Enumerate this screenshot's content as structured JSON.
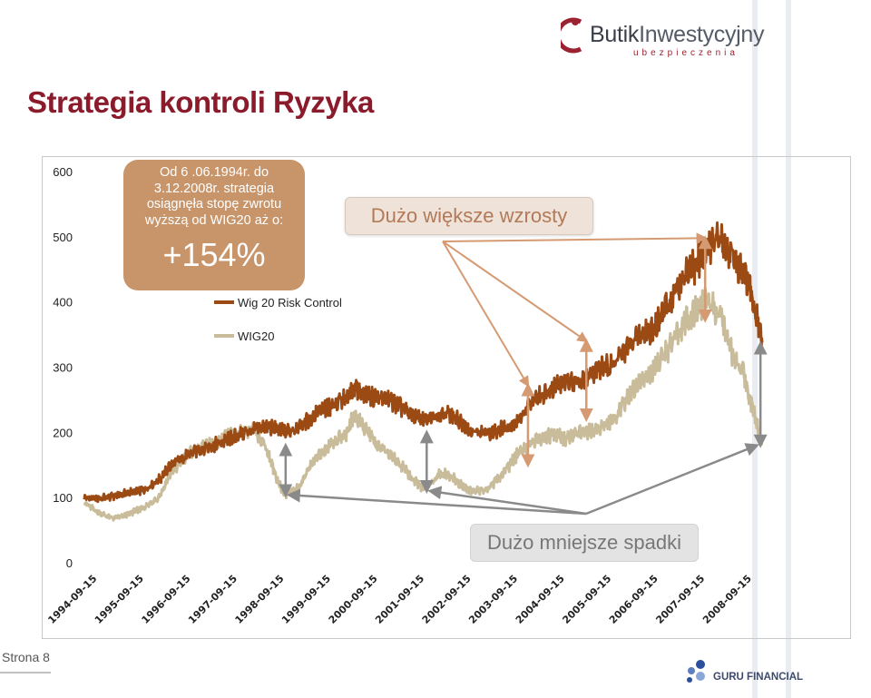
{
  "brand": {
    "main_part1": "Butik",
    "main_part2": "Inwestycyjny",
    "sub": "ubezpieczenia",
    "partner": "GURU FINANCIAL",
    "accent": "#8b1a2b"
  },
  "page_title": "Strategia kontroli Ryzyka",
  "callout": {
    "text": "Od 6 .06.1994r. do 3.12.2008r. strategia osiągnęła stopę zwrotu wyższą od WIG20 aż o:",
    "value": "+154%"
  },
  "annotations": {
    "wzrosty": "Dużo większe wzrosty",
    "spadki": "Dużo mniejsze spadki"
  },
  "footer": {
    "page": "Strona 8"
  },
  "chart_data": {
    "type": "line",
    "title": "",
    "xlabel": "",
    "ylabel": "",
    "ylim": [
      0,
      600
    ],
    "yticks": [
      0,
      100,
      200,
      300,
      400,
      500,
      600
    ],
    "xlim": [
      "1994-06-06",
      "2008-12-03"
    ],
    "xtick_labels": [
      "1994-09-15",
      "1995-09-15",
      "1996-09-15",
      "1997-09-15",
      "1998-09-15",
      "1999-09-15",
      "2000-09-15",
      "2001-09-15",
      "2002-09-15",
      "2003-09-15",
      "2004-09-15",
      "2005-09-15",
      "2006-09-15",
      "2007-09-15",
      "2008-09-15"
    ],
    "grid": false,
    "legend": "top-left, inside plot",
    "series": [
      {
        "name": "Wig 20 Risk Control",
        "color": "#9c4a14",
        "x": [
          "1994-06-06",
          "1994-09-15",
          "1995-01-15",
          "1995-04-15",
          "1995-07-15",
          "1995-09-15",
          "1996-01-15",
          "1996-04-15",
          "1996-07-15",
          "1996-09-15",
          "1997-01-15",
          "1997-04-15",
          "1997-07-15",
          "1997-09-15",
          "1998-01-15",
          "1998-04-15",
          "1998-07-15",
          "1998-09-15",
          "1999-01-15",
          "1999-04-15",
          "1999-07-15",
          "1999-09-15",
          "2000-01-15",
          "2000-03-15",
          "2000-06-15",
          "2000-09-15",
          "2000-12-15",
          "2001-03-15",
          "2001-06-15",
          "2001-09-15",
          "2002-01-15",
          "2002-04-15",
          "2002-07-15",
          "2002-09-15",
          "2003-01-15",
          "2003-04-15",
          "2003-07-15",
          "2003-09-15",
          "2004-01-15",
          "2004-04-15",
          "2004-07-15",
          "2004-09-15",
          "2005-01-15",
          "2005-04-15",
          "2005-07-15",
          "2005-09-15",
          "2006-01-15",
          "2006-04-15",
          "2006-07-15",
          "2006-09-15",
          "2007-01-15",
          "2007-04-15",
          "2007-07-15",
          "2007-09-15",
          "2008-01-15",
          "2008-04-15",
          "2008-07-15",
          "2008-09-15",
          "2008-12-03"
        ],
        "values": [
          100,
          98,
          102,
          106,
          110,
          112,
          128,
          150,
          160,
          168,
          178,
          182,
          190,
          196,
          204,
          208,
          206,
          200,
          210,
          222,
          236,
          240,
          252,
          268,
          258,
          252,
          250,
          238,
          226,
          218,
          230,
          228,
          210,
          200,
          198,
          204,
          210,
          216,
          250,
          262,
          274,
          276,
          278,
          292,
          300,
          302,
          330,
          348,
          356,
          370,
          412,
          440,
          460,
          480,
          496,
          470,
          440,
          410,
          338
        ]
      },
      {
        "name": "WIG20",
        "color": "#c9bc9a",
        "x": [
          "1994-06-06",
          "1994-09-15",
          "1995-01-15",
          "1995-04-15",
          "1995-07-15",
          "1995-09-15",
          "1996-01-15",
          "1996-04-15",
          "1996-07-15",
          "1996-09-15",
          "1997-01-15",
          "1997-04-15",
          "1997-07-15",
          "1997-09-15",
          "1998-01-15",
          "1998-04-15",
          "1998-07-15",
          "1998-09-15",
          "1999-01-15",
          "1999-04-15",
          "1999-07-15",
          "1999-09-15",
          "2000-01-15",
          "2000-03-15",
          "2000-06-15",
          "2000-09-15",
          "2000-12-15",
          "2001-03-15",
          "2001-06-15",
          "2001-09-15",
          "2002-01-15",
          "2002-04-15",
          "2002-07-15",
          "2002-09-15",
          "2003-01-15",
          "2003-04-15",
          "2003-07-15",
          "2003-09-15",
          "2004-01-15",
          "2004-04-15",
          "2004-07-15",
          "2004-09-15",
          "2005-01-15",
          "2005-04-15",
          "2005-07-15",
          "2005-09-15",
          "2006-01-15",
          "2006-04-15",
          "2006-07-15",
          "2006-09-15",
          "2007-01-15",
          "2007-04-15",
          "2007-07-15",
          "2007-09-15",
          "2008-01-15",
          "2008-04-15",
          "2008-07-15",
          "2008-09-15",
          "2008-12-03"
        ],
        "values": [
          92,
          78,
          68,
          72,
          80,
          86,
          100,
          140,
          158,
          170,
          180,
          184,
          196,
          198,
          206,
          182,
          130,
          104,
          118,
          152,
          170,
          182,
          200,
          226,
          204,
          178,
          168,
          150,
          128,
          112,
          138,
          132,
          116,
          110,
          112,
          130,
          150,
          168,
          186,
          194,
          196,
          190,
          200,
          204,
          212,
          218,
          250,
          280,
          292,
          306,
          340,
          372,
          390,
          400,
          380,
          320,
          290,
          240,
          180
        ]
      }
    ],
    "arrows": [
      {
        "group": "wzrosty",
        "from": [
          "2003-12-01",
          272
        ],
        "to": [
          "2003-12-01",
          150
        ]
      },
      {
        "group": "wzrosty",
        "from": [
          "2005-03-01",
          340
        ],
        "to": [
          "2005-03-01",
          220
        ]
      },
      {
        "group": "wzrosty",
        "from": [
          "2007-09-15",
          498
        ],
        "to": [
          "2007-09-15",
          372
        ]
      },
      {
        "group": "spadki",
        "from": [
          "1998-09-25",
          104
        ],
        "to": [
          "1998-09-25",
          180
        ]
      },
      {
        "group": "spadki",
        "from": [
          "2001-10-01",
          110
        ],
        "to": [
          "2001-10-01",
          200
        ]
      },
      {
        "group": "spadki",
        "from": [
          "2008-11-20",
          180
        ],
        "to": [
          "2008-11-20",
          336
        ]
      }
    ]
  }
}
